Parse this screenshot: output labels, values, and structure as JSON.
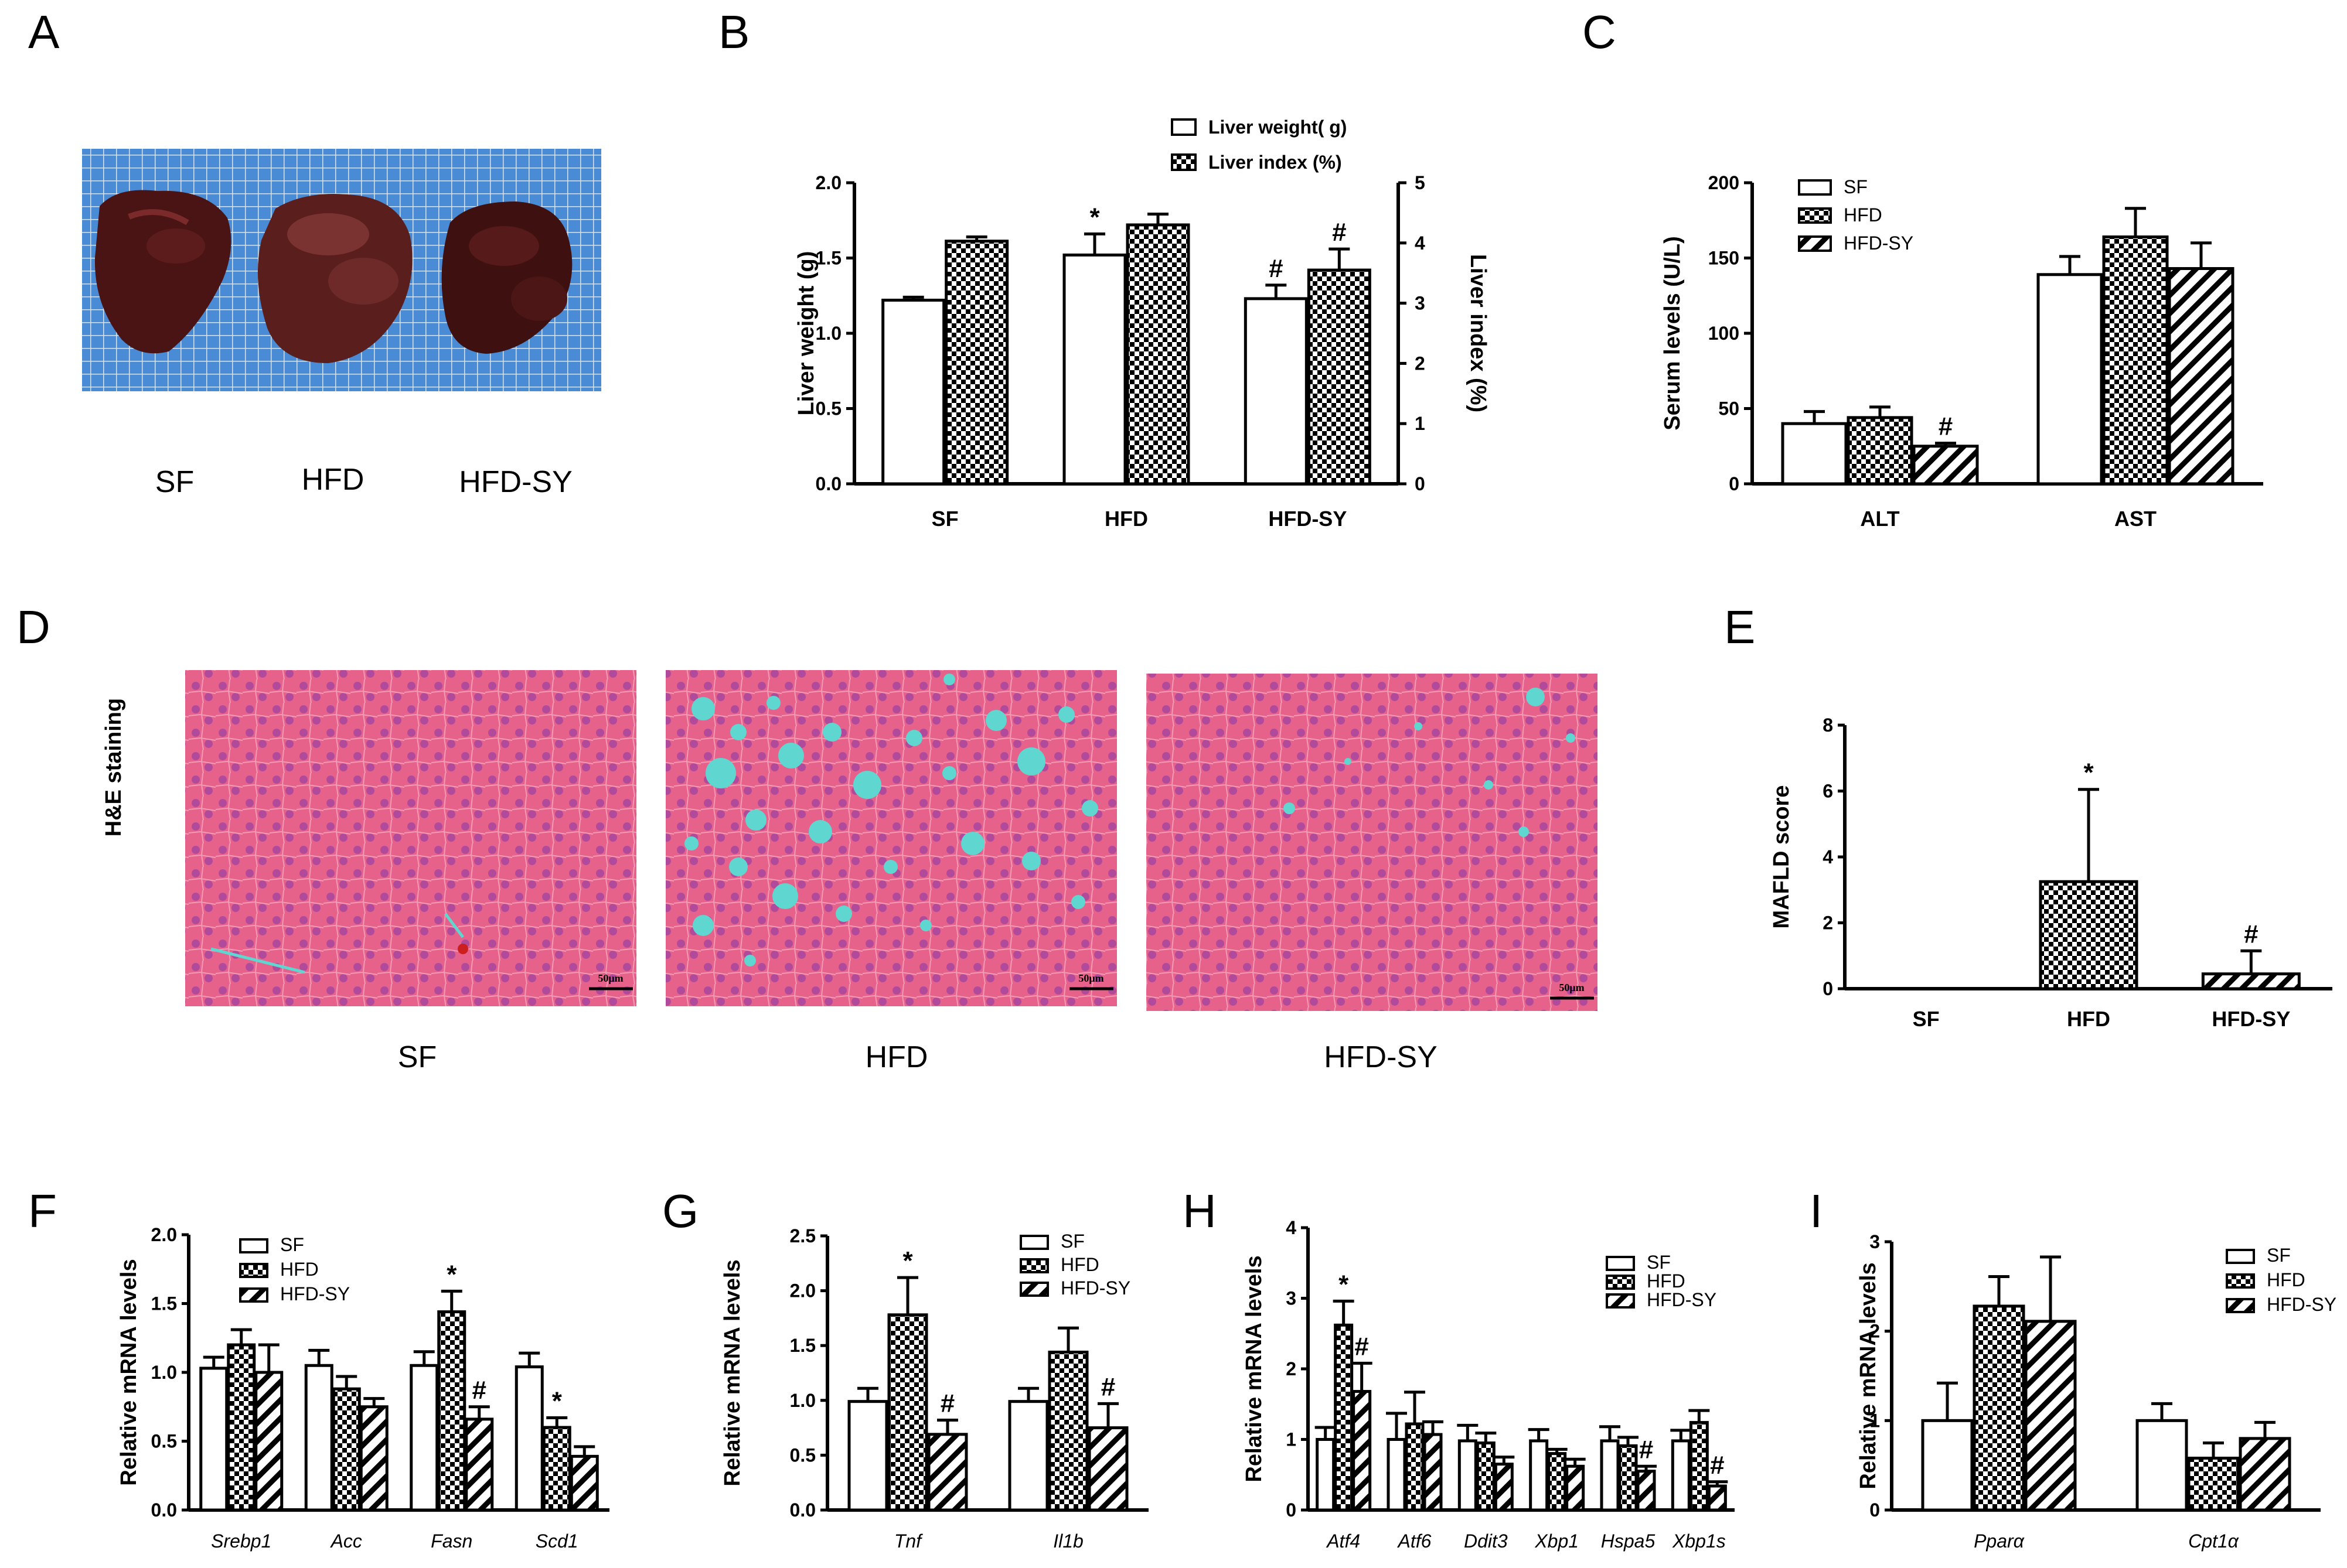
{
  "colors": {
    "axis": "#000000",
    "bar_stroke": "#000000",
    "bar_fill": "#ffffff",
    "he_pink": "#e2577f",
    "he_fat": "#5fd6d0",
    "grid_blue": "#3d7dc8"
  },
  "patterns": {
    "SF": "open",
    "HFD": "checker",
    "HFD-SY": "hatch"
  },
  "panels": {
    "A": {
      "letter": "A",
      "labels": [
        "SF",
        "HFD",
        "HFD-SY"
      ]
    },
    "D": {
      "letter": "D",
      "side_label": "H&E staining",
      "labels": [
        "SF",
        "HFD",
        "HFD-SY"
      ],
      "scale_bar": "50μm"
    }
  },
  "chart_data": [
    {
      "id": "B",
      "letter": "B",
      "type": "bar",
      "categories": [
        "SF",
        "HFD",
        "HFD-SY"
      ],
      "cat_style": "bold",
      "ylabel": "Liver weight (g)",
      "ylim": [
        0,
        2.0
      ],
      "yticks": [
        "0.0",
        "0.5",
        "1.0",
        "1.5",
        "2.0"
      ],
      "y2label": "Liver index (%)",
      "y2lim": [
        0,
        5
      ],
      "y2ticks": [
        "0",
        "1",
        "2",
        "3",
        "4",
        "5"
      ],
      "legend": [
        "Liver weight( g)",
        "Liver index (%)"
      ],
      "series": [
        {
          "name": "Liver weight( g)",
          "pattern": "open",
          "axis": "y",
          "values": [
            1.22,
            1.52,
            1.23
          ],
          "errors": [
            0.02,
            0.14,
            0.09
          ],
          "marks": [
            "",
            "*",
            "#"
          ]
        },
        {
          "name": "Liver index (%)",
          "pattern": "checker",
          "axis": "y2",
          "values": [
            4.03,
            4.3,
            3.55
          ],
          "errors": [
            0.07,
            0.18,
            0.35
          ],
          "marks": [
            "",
            "",
            "#"
          ]
        }
      ]
    },
    {
      "id": "C",
      "letter": "C",
      "type": "bar",
      "categories": [
        "ALT",
        "AST"
      ],
      "cat_style": "bold",
      "ylabel": "Serum  levels (U/L)",
      "ylim": [
        0,
        200
      ],
      "yticks": [
        "0",
        "50",
        "100",
        "150",
        "200"
      ],
      "legend": [
        "SF",
        "HFD",
        "HFD-SY"
      ],
      "series": [
        {
          "name": "SF",
          "pattern": "open",
          "values": [
            40,
            139
          ],
          "errors": [
            8,
            12
          ],
          "marks": [
            "",
            ""
          ]
        },
        {
          "name": "HFD",
          "pattern": "checker",
          "values": [
            44,
            164
          ],
          "errors": [
            7,
            19
          ],
          "marks": [
            "",
            ""
          ]
        },
        {
          "name": "HFD-SY",
          "pattern": "hatch",
          "values": [
            25,
            143
          ],
          "errors": [
            2,
            17
          ],
          "marks": [
            "#",
            ""
          ]
        }
      ]
    },
    {
      "id": "E",
      "letter": "E",
      "type": "bar",
      "categories": [
        "SF",
        "HFD",
        "HFD-SY"
      ],
      "cat_style": "bold",
      "ylabel": "MAFLD score",
      "ylim": [
        0,
        8
      ],
      "yticks": [
        "0",
        "2",
        "4",
        "6",
        "8"
      ],
      "legend": [],
      "series": [
        {
          "name": "score",
          "pattern": "bygroup",
          "values": [
            0,
            3.25,
            0.45
          ],
          "errors": [
            0,
            2.8,
            0.7
          ],
          "marks": [
            "",
            "*",
            "#"
          ]
        }
      ]
    },
    {
      "id": "F",
      "letter": "F",
      "type": "bar",
      "categories": [
        "Srebp1",
        "Acc",
        "Fasn",
        "Scd1"
      ],
      "cat_style": "italic",
      "ylabel": "Relative mRNA levels",
      "ylim": [
        0,
        2.0
      ],
      "yticks": [
        "0.0",
        "0.5",
        "1.0",
        "1.5",
        "2.0"
      ],
      "legend": [
        "SF",
        "HFD",
        "HFD-SY"
      ],
      "series": [
        {
          "name": "SF",
          "pattern": "open",
          "values": [
            1.03,
            1.05,
            1.05,
            1.04
          ],
          "errors": [
            0.08,
            0.11,
            0.1,
            0.1
          ],
          "marks": [
            "",
            "",
            "",
            ""
          ]
        },
        {
          "name": "HFD",
          "pattern": "checker",
          "values": [
            1.2,
            0.88,
            1.44,
            0.6
          ],
          "errors": [
            0.11,
            0.09,
            0.15,
            0.07
          ],
          "marks": [
            "",
            "",
            "*",
            "*"
          ]
        },
        {
          "name": "HFD-SY",
          "pattern": "hatch",
          "values": [
            1.0,
            0.75,
            0.66,
            0.39
          ],
          "errors": [
            0.2,
            0.06,
            0.09,
            0.07
          ],
          "marks": [
            "",
            "",
            "#",
            ""
          ]
        }
      ]
    },
    {
      "id": "G",
      "letter": "G",
      "type": "bar",
      "categories": [
        "Tnf",
        "Il1b"
      ],
      "cat_style": "italic",
      "ylabel": "Relative mRNA levels",
      "ylim": [
        0,
        2.5
      ],
      "yticks": [
        "0.0",
        "0.5",
        "1.0",
        "1.5",
        "2.0",
        "2.5"
      ],
      "legend": [
        "SF",
        "HFD",
        "HFD-SY"
      ],
      "series": [
        {
          "name": "SF",
          "pattern": "open",
          "values": [
            0.99,
            0.99
          ],
          "errors": [
            0.12,
            0.12
          ],
          "marks": [
            "",
            ""
          ]
        },
        {
          "name": "HFD",
          "pattern": "checker",
          "values": [
            1.78,
            1.44
          ],
          "errors": [
            0.34,
            0.22
          ],
          "marks": [
            "*",
            ""
          ]
        },
        {
          "name": "HFD-SY",
          "pattern": "hatch",
          "values": [
            0.69,
            0.75
          ],
          "errors": [
            0.13,
            0.22
          ],
          "marks": [
            "#",
            "#"
          ]
        }
      ]
    },
    {
      "id": "H",
      "letter": "H",
      "type": "bar",
      "categories": [
        "Atf4",
        "Atf6",
        "Ddit3",
        "Xbp1",
        "Hspa5",
        "Xbp1s"
      ],
      "cat_style": "italic",
      "ylabel": "Relative mRNA levels",
      "ylim": [
        0,
        4
      ],
      "yticks": [
        "0",
        "1",
        "2",
        "3",
        "4"
      ],
      "legend": [
        "SF",
        "HFD",
        "HFD-SY"
      ],
      "series": [
        {
          "name": "SF",
          "pattern": "open",
          "values": [
            1.0,
            1.0,
            0.98,
            0.98,
            0.98,
            0.98
          ],
          "errors": [
            0.17,
            0.37,
            0.22,
            0.16,
            0.2,
            0.15
          ],
          "marks": [
            "",
            "",
            "",
            "",
            "",
            ""
          ]
        },
        {
          "name": "HFD",
          "pattern": "checker",
          "values": [
            2.62,
            1.22,
            0.95,
            0.8,
            0.91,
            1.24
          ],
          "errors": [
            0.34,
            0.45,
            0.14,
            0.06,
            0.12,
            0.17
          ],
          "marks": [
            "*",
            "",
            "",
            "",
            "",
            ""
          ]
        },
        {
          "name": "HFD-SY",
          "pattern": "hatch",
          "values": [
            1.68,
            1.07,
            0.65,
            0.62,
            0.55,
            0.34
          ],
          "errors": [
            0.4,
            0.18,
            0.1,
            0.1,
            0.07,
            0.06
          ],
          "marks": [
            "#",
            "",
            "",
            "",
            "#",
            "#"
          ]
        }
      ]
    },
    {
      "id": "I",
      "letter": "I",
      "type": "bar",
      "categories": [
        "Pparα",
        "Cpt1α"
      ],
      "cat_style": "italic",
      "ylabel": "Relative mRNA levels",
      "ylim": [
        0,
        3
      ],
      "yticks": [
        "0",
        "1",
        "2",
        "3"
      ],
      "legend": [
        "SF",
        "HFD",
        "HFD-SY"
      ],
      "series": [
        {
          "name": "SF",
          "pattern": "open",
          "values": [
            1.0,
            1.0
          ],
          "errors": [
            0.42,
            0.19
          ],
          "marks": [
            "",
            ""
          ]
        },
        {
          "name": "HFD",
          "pattern": "checker",
          "values": [
            2.28,
            0.58
          ],
          "errors": [
            0.33,
            0.17
          ],
          "marks": [
            "",
            ""
          ]
        },
        {
          "name": "HFD-SY",
          "pattern": "hatch",
          "values": [
            2.11,
            0.8
          ],
          "errors": [
            0.72,
            0.18
          ],
          "marks": [
            "",
            ""
          ]
        }
      ]
    }
  ]
}
